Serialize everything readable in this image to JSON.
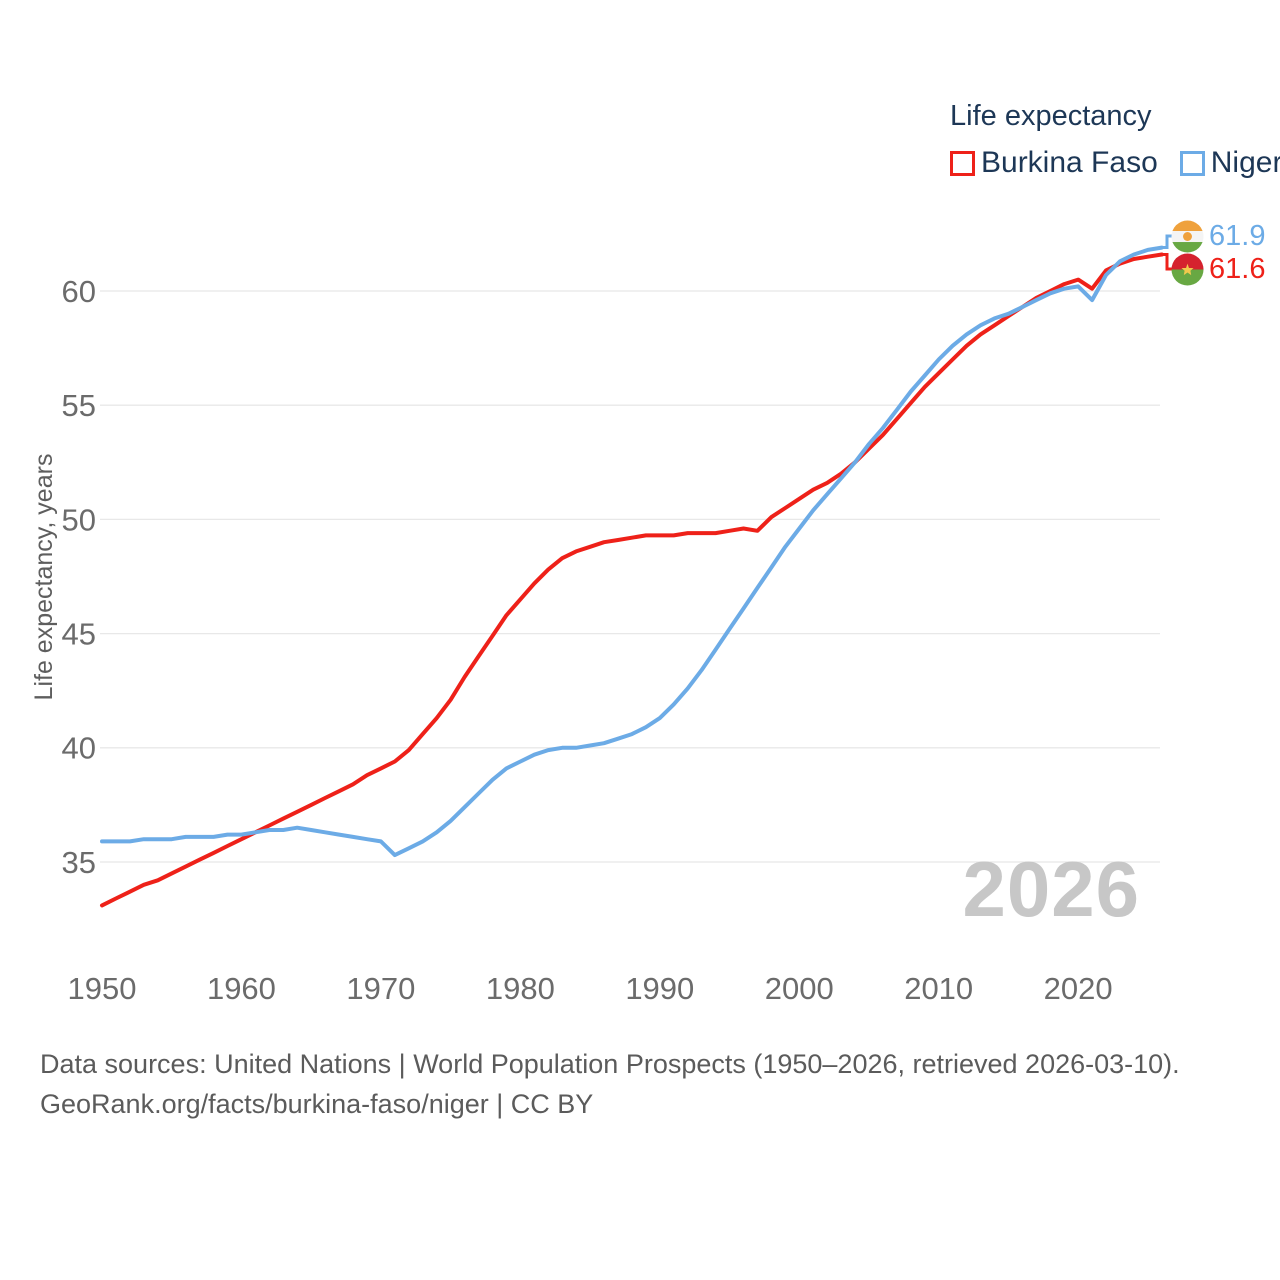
{
  "legend": {
    "title": "Life expectancy",
    "items": [
      {
        "label": "Burkina Faso",
        "color": "#ee2119"
      },
      {
        "label": "Niger",
        "color": "#6cabe6"
      }
    ]
  },
  "axes": {
    "y_title": "Life expectancy, years"
  },
  "watermark": "2026",
  "end_labels": [
    {
      "series": "Niger",
      "value": "61.9",
      "color": "#6cabe6",
      "flag": "niger-flag-icon"
    },
    {
      "series": "Burkina Faso",
      "value": "61.6",
      "color": "#ee2119",
      "flag": "burkina-faso-flag-icon"
    }
  ],
  "footer": {
    "line1": "Data sources: United Nations | World Population Prospects (1950–2026, retrieved 2026-03-10).",
    "line2": "GeoRank.org/facts/burkina-faso/niger | CC BY"
  },
  "chart_data": {
    "type": "line",
    "title": "Life expectancy",
    "xlabel": "",
    "ylabel": "Life expectancy, years",
    "ylim": [
      32.5,
      62.5
    ],
    "xlim": [
      1950,
      2026
    ],
    "grid": "horizontal",
    "legend_position": "top-right",
    "y_ticks": [
      35,
      40,
      45,
      50,
      55,
      60
    ],
    "x_ticks": [
      1950,
      1960,
      1970,
      1980,
      1990,
      2000,
      2010,
      2020
    ],
    "x": [
      1950,
      1951,
      1952,
      1953,
      1954,
      1955,
      1956,
      1957,
      1958,
      1959,
      1960,
      1961,
      1962,
      1963,
      1964,
      1965,
      1966,
      1967,
      1968,
      1969,
      1970,
      1971,
      1972,
      1973,
      1974,
      1975,
      1976,
      1977,
      1978,
      1979,
      1980,
      1981,
      1982,
      1983,
      1984,
      1985,
      1986,
      1987,
      1988,
      1989,
      1990,
      1991,
      1992,
      1993,
      1994,
      1995,
      1996,
      1997,
      1998,
      1999,
      2000,
      2001,
      2002,
      2003,
      2004,
      2005,
      2006,
      2007,
      2008,
      2009,
      2010,
      2011,
      2012,
      2013,
      2014,
      2015,
      2016,
      2017,
      2018,
      2019,
      2020,
      2021,
      2022,
      2023,
      2024,
      2025,
      2026
    ],
    "series": [
      {
        "name": "Burkina Faso",
        "color": "#ee2119",
        "final_value": 61.6,
        "values": [
          33.1,
          33.4,
          33.7,
          34.0,
          34.2,
          34.5,
          34.8,
          35.1,
          35.4,
          35.7,
          36.0,
          36.3,
          36.6,
          36.9,
          37.2,
          37.5,
          37.8,
          38.1,
          38.4,
          38.8,
          39.1,
          39.4,
          39.9,
          40.6,
          41.3,
          42.1,
          43.1,
          44.0,
          44.9,
          45.8,
          46.5,
          47.2,
          47.8,
          48.3,
          48.6,
          48.8,
          49.0,
          49.1,
          49.2,
          49.3,
          49.3,
          49.3,
          49.4,
          49.4,
          49.4,
          49.5,
          49.6,
          49.5,
          50.1,
          50.5,
          50.9,
          51.3,
          51.6,
          52.0,
          52.5,
          53.1,
          53.7,
          54.4,
          55.1,
          55.8,
          56.4,
          57.0,
          57.6,
          58.1,
          58.5,
          58.9,
          59.3,
          59.7,
          60.0,
          60.3,
          60.5,
          60.1,
          60.9,
          61.2,
          61.4,
          61.5,
          61.6
        ]
      },
      {
        "name": "Niger",
        "color": "#6cabe6",
        "final_value": 61.9,
        "values": [
          35.9,
          35.9,
          35.9,
          36.0,
          36.0,
          36.0,
          36.1,
          36.1,
          36.1,
          36.2,
          36.2,
          36.3,
          36.4,
          36.4,
          36.5,
          36.4,
          36.3,
          36.2,
          36.1,
          36.0,
          35.9,
          35.3,
          35.6,
          35.9,
          36.3,
          36.8,
          37.4,
          38.0,
          38.6,
          39.1,
          39.4,
          39.7,
          39.9,
          40.0,
          40.0,
          40.1,
          40.2,
          40.4,
          40.6,
          40.9,
          41.3,
          41.9,
          42.6,
          43.4,
          44.3,
          45.2,
          46.1,
          47.0,
          47.9,
          48.8,
          49.6,
          50.4,
          51.1,
          51.8,
          52.5,
          53.3,
          54.0,
          54.8,
          55.6,
          56.3,
          57.0,
          57.6,
          58.1,
          58.5,
          58.8,
          59.0,
          59.3,
          59.6,
          59.9,
          60.1,
          60.2,
          59.6,
          60.7,
          61.3,
          61.6,
          61.8,
          61.9
        ]
      }
    ]
  }
}
